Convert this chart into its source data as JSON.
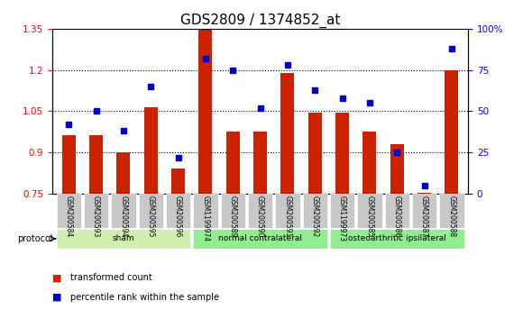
{
  "title": "GDS2809 / 1374852_at",
  "samples": [
    "GSM200584",
    "GSM200593",
    "GSM200594",
    "GSM200595",
    "GSM200596",
    "GSM1199974",
    "GSM200589",
    "GSM200590",
    "GSM200591",
    "GSM200592",
    "GSM1199973",
    "GSM200585",
    "GSM200586",
    "GSM200587",
    "GSM200588"
  ],
  "bar_values": [
    0.963,
    0.963,
    0.9,
    1.063,
    0.843,
    1.35,
    0.975,
    0.975,
    1.188,
    1.044,
    1.044,
    0.975,
    0.93,
    0.755,
    1.2
  ],
  "dot_values": [
    42,
    50,
    38,
    65,
    22,
    82,
    75,
    52,
    78,
    63,
    58,
    55,
    25,
    5,
    88
  ],
  "ylim_left": [
    0.75,
    1.35
  ],
  "ylim_right": [
    0,
    100
  ],
  "yticks_left": [
    0.75,
    0.9,
    1.05,
    1.2,
    1.35
  ],
  "yticks_right": [
    0,
    25,
    50,
    75,
    100
  ],
  "bar_color": "#cc2200",
  "dot_color": "#0000cc",
  "tick_label_bg": "#c8c8c8",
  "protocol_label": "protocol",
  "legend_bar": "transformed count",
  "legend_dot": "percentile rank within the sample",
  "title_fontsize": 11,
  "tick_fontsize": 7.5,
  "group_defs": [
    {
      "label": "sham",
      "start": 0,
      "end": 4,
      "color": "#d0f0b0"
    },
    {
      "label": "normal contralateral",
      "start": 5,
      "end": 9,
      "color": "#90ee90"
    },
    {
      "label": "osteoarthritic ipsilateral",
      "start": 10,
      "end": 14,
      "color": "#90ee90"
    }
  ]
}
